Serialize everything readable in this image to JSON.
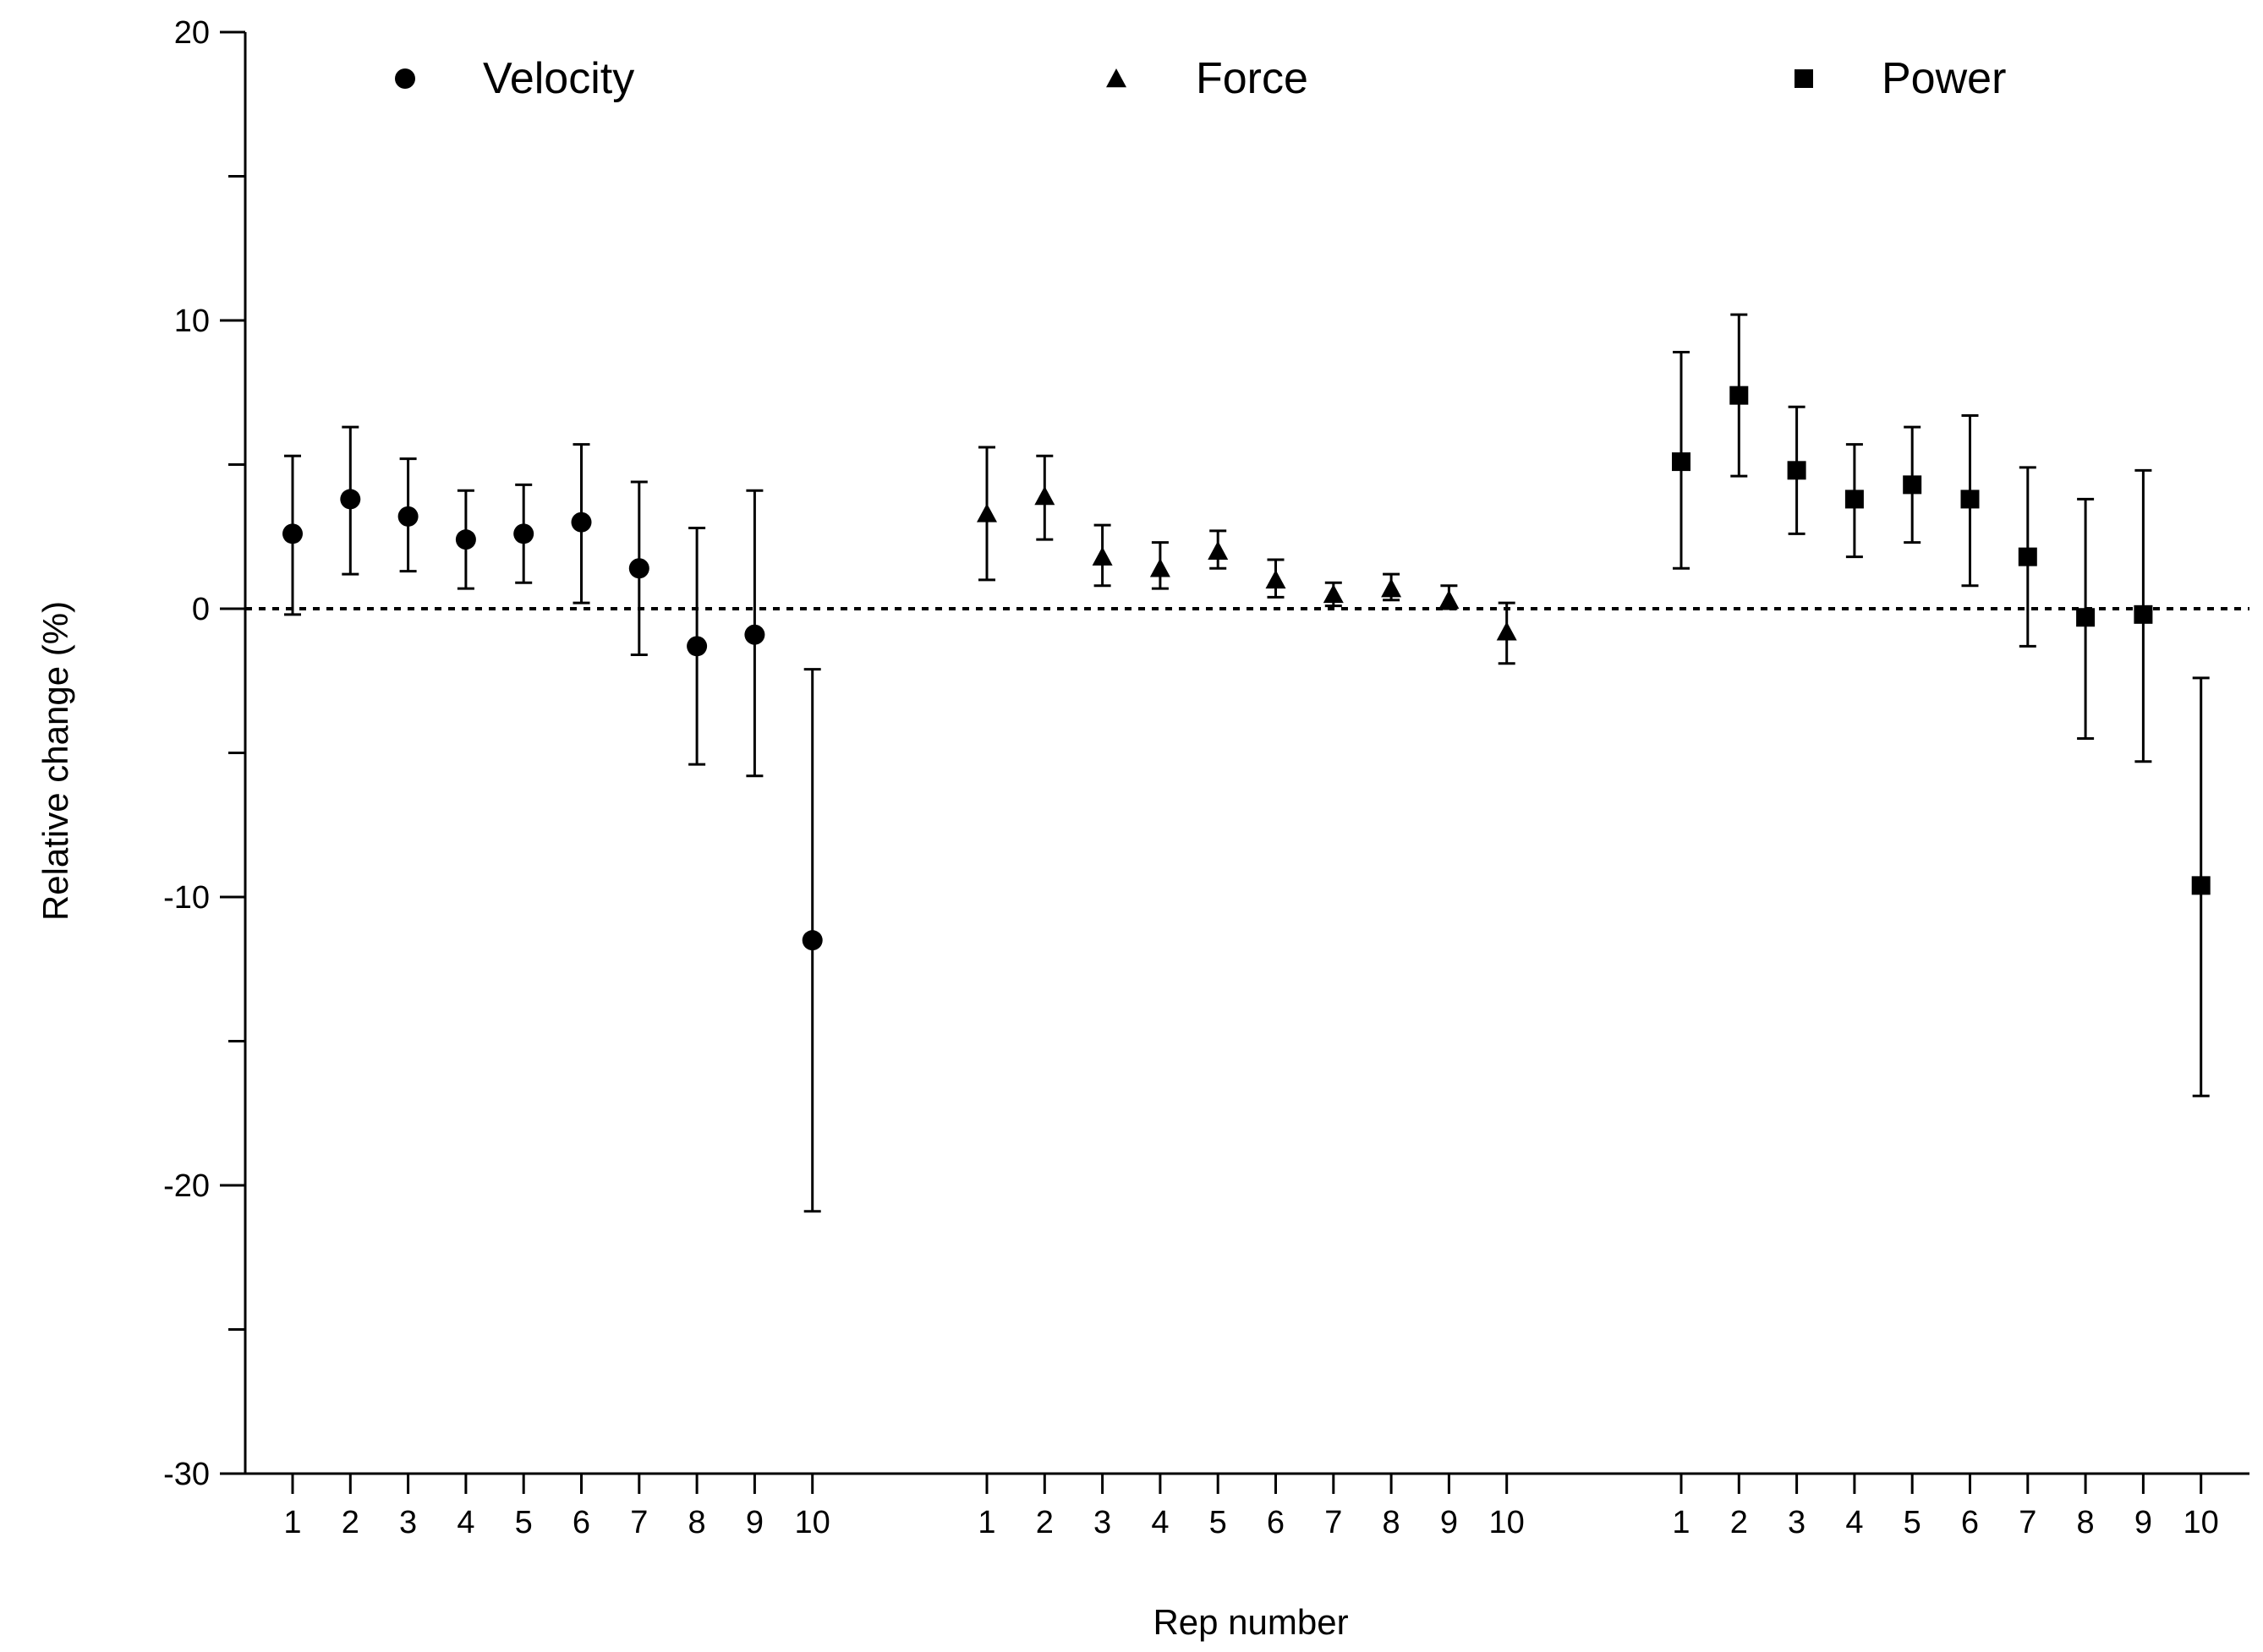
{
  "chart_data": {
    "type": "scatter",
    "title": "",
    "xlabel": "Rep number",
    "ylabel": "Relative change (%)",
    "ylim": [
      -30,
      20
    ],
    "yticks": [
      "20",
      "10",
      "0",
      "-10",
      "-20",
      "-30"
    ],
    "ytick_values": [
      20,
      10,
      0,
      -10,
      -20,
      -30
    ],
    "reference_line": 0,
    "categories": [
      "1",
      "2",
      "3",
      "4",
      "5",
      "6",
      "7",
      "8",
      "9",
      "10"
    ],
    "legend_position": "top",
    "series": [
      {
        "name": "Velocity",
        "marker": "circle",
        "values": [
          2.6,
          3.8,
          3.2,
          2.4,
          2.6,
          3.0,
          1.4,
          -1.3,
          -0.9,
          -11.5
        ],
        "lower": [
          -0.2,
          1.2,
          1.3,
          0.7,
          0.9,
          0.2,
          -1.6,
          -5.4,
          -5.8,
          -20.9
        ],
        "upper": [
          5.3,
          6.3,
          5.2,
          4.1,
          4.3,
          5.7,
          4.4,
          2.8,
          4.1,
          -2.1
        ]
      },
      {
        "name": "Force",
        "marker": "triangle",
        "values": [
          3.3,
          3.9,
          1.8,
          1.4,
          2.0,
          1.0,
          0.5,
          0.7,
          0.3,
          -0.8
        ],
        "lower": [
          1.0,
          2.4,
          0.8,
          0.7,
          1.4,
          0.4,
          0.1,
          0.3,
          0.0,
          -1.9
        ],
        "upper": [
          5.6,
          5.3,
          2.9,
          2.3,
          2.7,
          1.7,
          0.9,
          1.2,
          0.8,
          0.2
        ]
      },
      {
        "name": "Power",
        "marker": "square",
        "values": [
          5.1,
          7.4,
          4.8,
          3.8,
          4.3,
          3.8,
          1.8,
          -0.3,
          -0.2,
          -9.6
        ],
        "lower": [
          1.4,
          4.6,
          2.6,
          1.8,
          2.3,
          0.8,
          -1.3,
          -4.5,
          -5.3,
          -16.9
        ],
        "upper": [
          8.9,
          10.2,
          7.0,
          5.7,
          6.3,
          6.7,
          4.9,
          3.8,
          4.8,
          -2.4
        ]
      }
    ]
  }
}
